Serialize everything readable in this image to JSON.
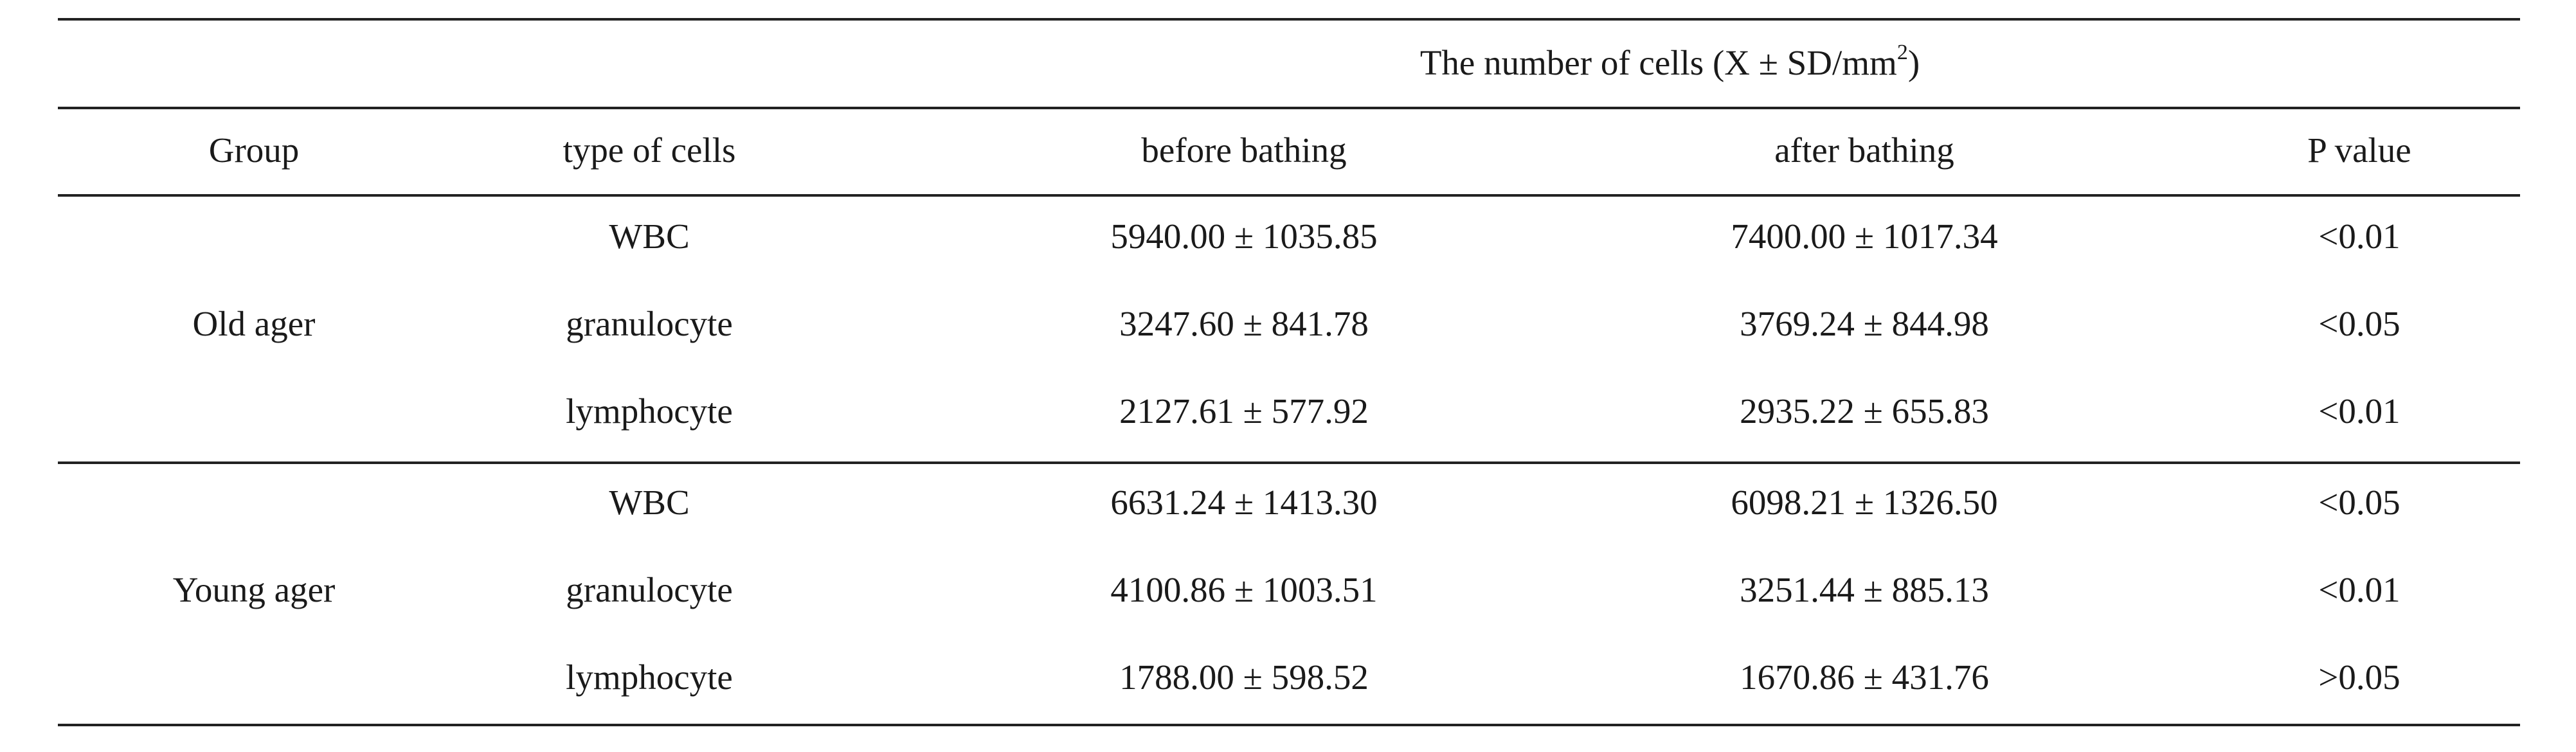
{
  "table": {
    "spanner": {
      "prefix": "The number of cells (X ± SD/mm",
      "superscript": "2",
      "suffix": ")"
    },
    "headers": [
      "Group",
      "type of cells",
      "before bathing",
      "after bathing",
      "P value"
    ],
    "groups": [
      {
        "name": "Old ager",
        "rows": [
          {
            "type": "WBC",
            "before": "5940.00 ± 1035.85",
            "after": "7400.00 ± 1017.34",
            "p": "<0.01"
          },
          {
            "type": "granulocyte",
            "before": "3247.60 ± 841.78",
            "after": "3769.24 ± 844.98",
            "p": "<0.05"
          },
          {
            "type": "lymphocyte",
            "before": "2127.61 ± 577.92",
            "after": "2935.22 ± 655.83",
            "p": "<0.01"
          }
        ]
      },
      {
        "name": "Young ager",
        "rows": [
          {
            "type": "WBC",
            "before": "6631.24 ± 1413.30",
            "after": "6098.21 ± 1326.50",
            "p": "<0.05"
          },
          {
            "type": "granulocyte",
            "before": "4100.86 ± 1003.51",
            "after": "3251.44 ± 885.13",
            "p": "<0.01"
          },
          {
            "type": "lymphocyte",
            "before": "1788.00 ± 598.52",
            "after": "1670.86 ± 431.76",
            "p": ">0.05"
          }
        ]
      }
    ]
  }
}
